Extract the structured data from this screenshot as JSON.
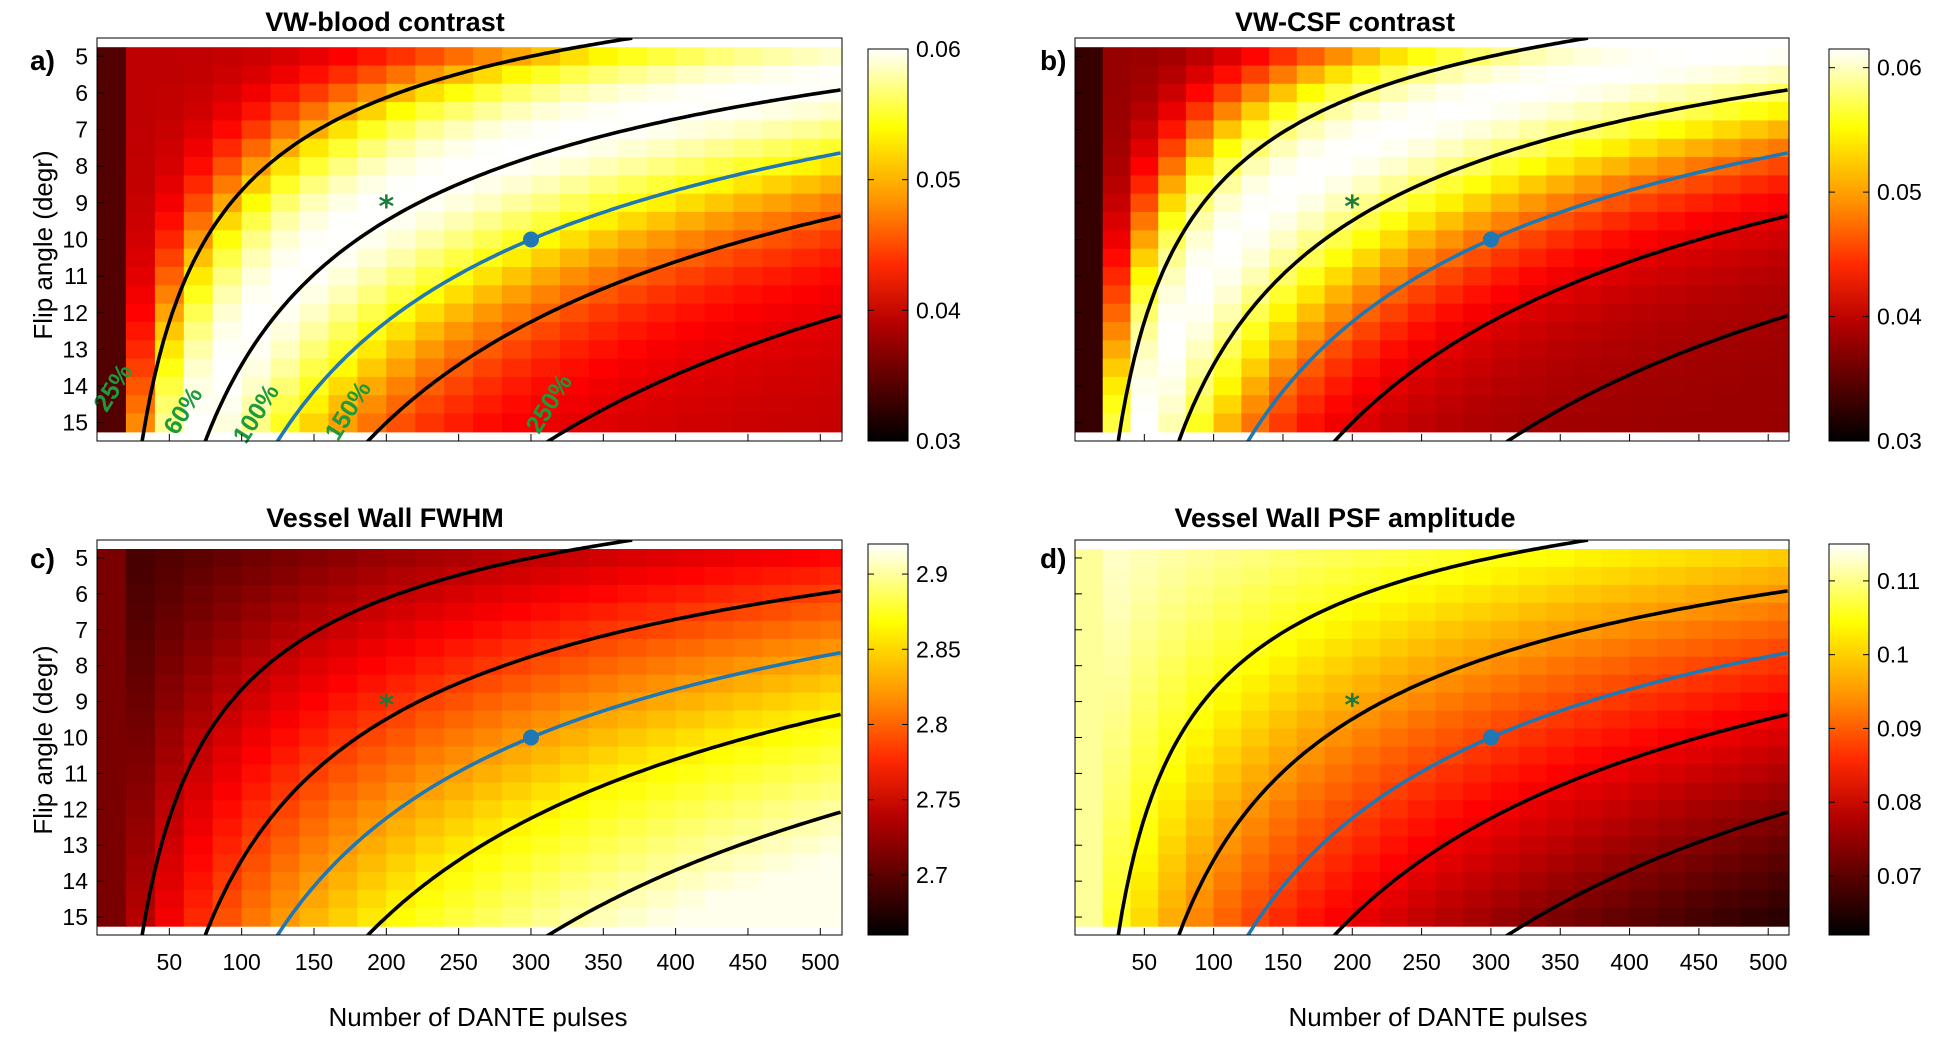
{
  "figure": {
    "colormap": "hot",
    "star_color": "#1c7a3a",
    "pct_color": "#1c9a3c",
    "contour_color": "#000000",
    "highlight_contour_color": "#1f77b4",
    "marker_color": "#1f77b4",
    "contour_levels_percent": [
      25,
      60,
      100,
      150,
      250
    ],
    "highlight_level_percent": 100,
    "contour_labels": [
      "25%",
      "60%",
      "100%",
      "150%",
      "250%"
    ]
  },
  "chart_data": [
    {
      "type": "heatmap",
      "panel_label": "a)",
      "title": "VW-blood contrast",
      "xlabel": "",
      "ylabel": "Flip angle (degr)",
      "x_range": [
        0,
        515
      ],
      "x_ticks": [],
      "y_ticks": [
        5,
        6,
        7,
        8,
        9,
        10,
        11,
        12,
        13,
        14,
        15
      ],
      "y_range": [
        4.5,
        15.5
      ],
      "colorbar": {
        "min": 0.03,
        "max": 0.06,
        "ticks": [
          "0.03",
          "0.04",
          "0.05",
          "0.06"
        ]
      },
      "show_contour_labels": true,
      "peak": {
        "x": 200,
        "y": 9
      },
      "star": {
        "x": 200,
        "y": 9,
        "symbol": "*"
      },
      "marker": {
        "x": 300,
        "y": 10
      }
    },
    {
      "type": "heatmap",
      "panel_label": "b)",
      "title": "VW-CSF contrast",
      "xlabel": "",
      "ylabel": "",
      "x_range": [
        0,
        515
      ],
      "x_ticks": [],
      "y_ticks": [],
      "y_range": [
        4.5,
        15.5
      ],
      "colorbar": {
        "min": 0.03,
        "max": 0.06,
        "ticks": [
          "0.03",
          "0.04",
          "0.05",
          "0.06"
        ]
      },
      "show_contour_labels": false,
      "peak": {
        "x": 130,
        "y": 10.5
      },
      "star": {
        "x": 200,
        "y": 9,
        "symbol": "*"
      },
      "marker": {
        "x": 300,
        "y": 10
      }
    },
    {
      "type": "heatmap",
      "panel_label": "c)",
      "title": "Vessel Wall FWHM",
      "xlabel": "Number of DANTE pulses",
      "ylabel": "Flip angle (degr)",
      "x_range": [
        0,
        515
      ],
      "x_ticks": [
        "50",
        "100",
        "150",
        "200",
        "250",
        "300",
        "350",
        "400",
        "450",
        "500"
      ],
      "y_ticks": [
        5,
        6,
        7,
        8,
        9,
        10,
        11,
        12,
        13,
        14,
        15
      ],
      "y_range": [
        4.5,
        15.5
      ],
      "colorbar": {
        "min": 2.66,
        "max": 2.92,
        "ticks": [
          "2.7",
          "2.75",
          "2.8",
          "2.85",
          "2.9"
        ]
      },
      "show_contour_labels": false,
      "star": {
        "x": 200,
        "y": 9,
        "symbol": "*"
      },
      "marker": {
        "x": 300,
        "y": 10
      }
    },
    {
      "type": "heatmap",
      "panel_label": "d)",
      "title": "Vessel Wall PSF amplitude",
      "xlabel": "Number of DANTE pulses",
      "ylabel": "",
      "x_range": [
        0,
        515
      ],
      "x_ticks": [
        "50",
        "100",
        "150",
        "200",
        "250",
        "300",
        "350",
        "400",
        "450",
        "500"
      ],
      "y_ticks": [],
      "y_range": [
        4.5,
        15.5
      ],
      "colorbar": {
        "min": 0.062,
        "max": 0.115,
        "ticks": [
          "0.07",
          "0.08",
          "0.09",
          "0.1",
          "0.11"
        ]
      },
      "show_contour_labels": false,
      "star": {
        "x": 200,
        "y": 9,
        "symbol": "*"
      },
      "marker": {
        "x": 300,
        "y": 10
      }
    }
  ]
}
